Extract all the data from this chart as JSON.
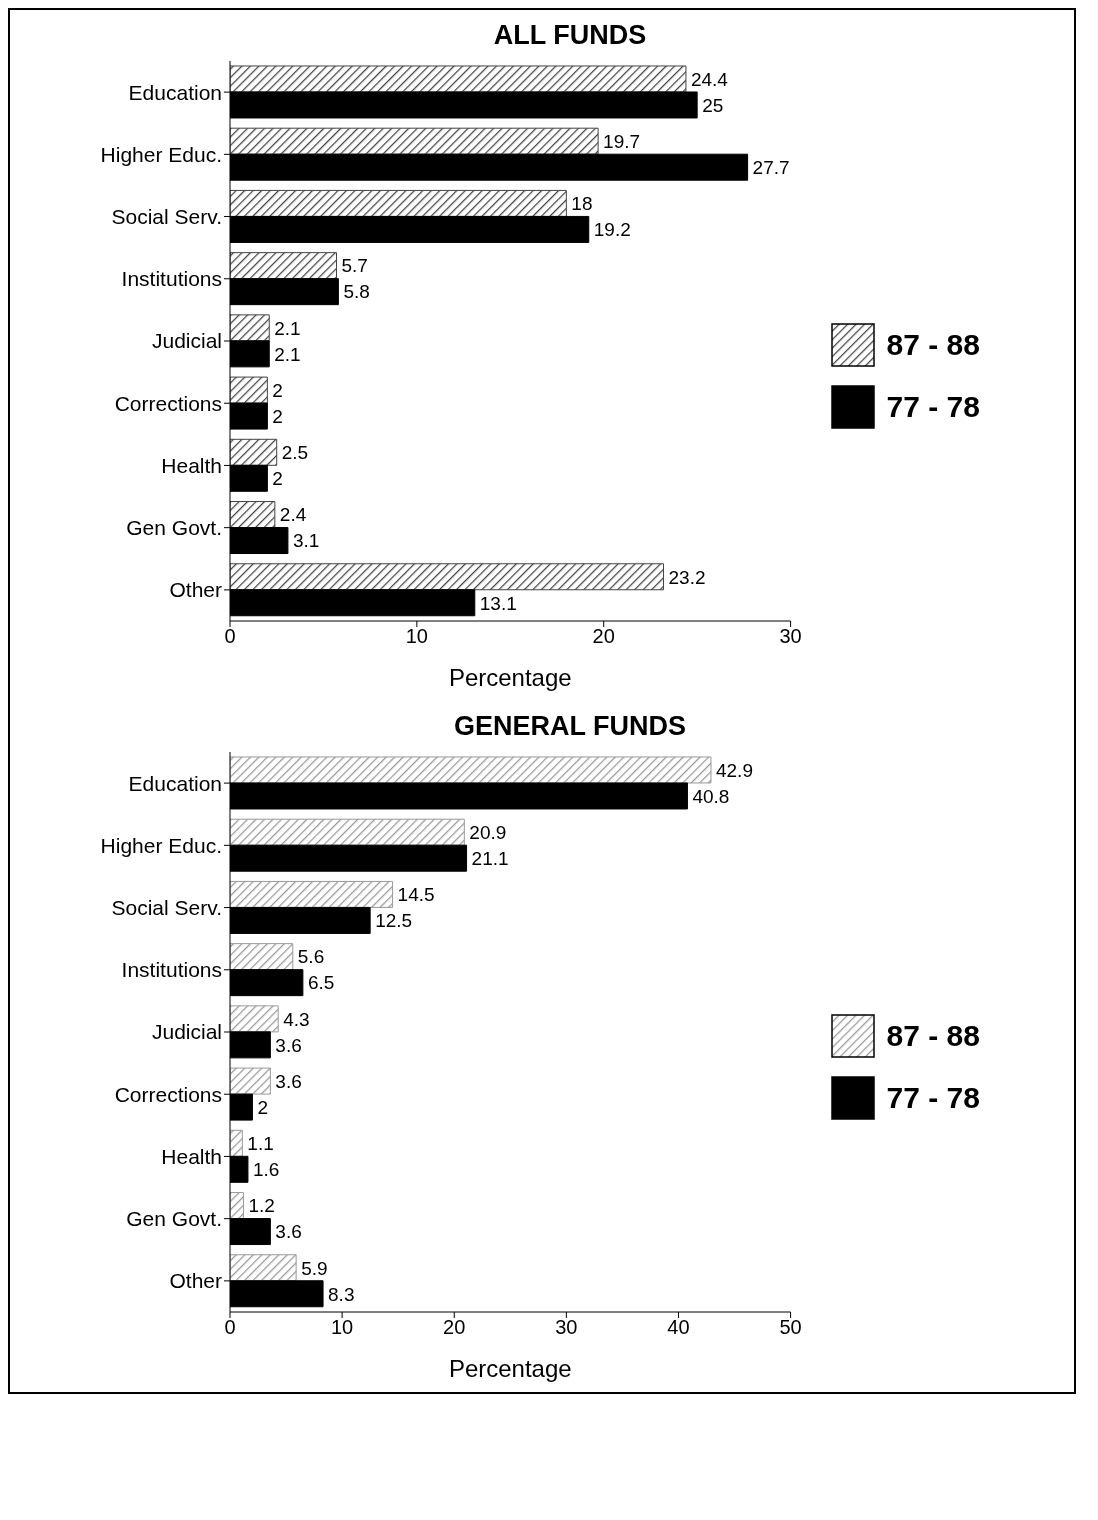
{
  "chart_data": [
    {
      "type": "bar",
      "orientation": "horizontal",
      "title": "ALL FUNDS",
      "xlabel": "Percentage",
      "categories": [
        "Education",
        "Higher Educ.",
        "Social Serv.",
        "Institutions",
        "Judicial",
        "Corrections",
        "Health",
        "Gen Govt.",
        "Other"
      ],
      "series": [
        {
          "name": "87 - 88",
          "color": "#444444",
          "values": [
            24.4,
            19.7,
            18,
            5.7,
            2.1,
            2,
            2.5,
            2.4,
            23.2
          ]
        },
        {
          "name": "77 - 78",
          "color": "#000000",
          "values": [
            25,
            27.7,
            19.2,
            5.8,
            2.1,
            2,
            2,
            3.1,
            13.1
          ]
        }
      ],
      "xlim": [
        0,
        30
      ],
      "xticks": [
        0,
        10,
        20,
        30
      ],
      "data_labels": true,
      "legend": "right",
      "grid": false
    },
    {
      "type": "bar",
      "orientation": "horizontal",
      "title": "GENERAL FUNDS",
      "xlabel": "Percentage",
      "categories": [
        "Education",
        "Higher Educ.",
        "Social Serv.",
        "Institutions",
        "Judicial",
        "Corrections",
        "Health",
        "Gen Govt.",
        "Other"
      ],
      "series": [
        {
          "name": "87 - 88",
          "color": "#999999",
          "values": [
            42.9,
            20.9,
            14.5,
            5.6,
            4.3,
            3.6,
            1.1,
            1.2,
            5.9
          ]
        },
        {
          "name": "77 - 78",
          "color": "#000000",
          "values": [
            40.8,
            21.1,
            12.5,
            6.5,
            3.6,
            2,
            1.6,
            3.6,
            8.3
          ]
        }
      ],
      "xlim": [
        0,
        50
      ],
      "xticks": [
        0,
        10,
        20,
        30,
        40,
        50
      ],
      "data_labels": true,
      "legend": "right",
      "grid": false
    }
  ]
}
